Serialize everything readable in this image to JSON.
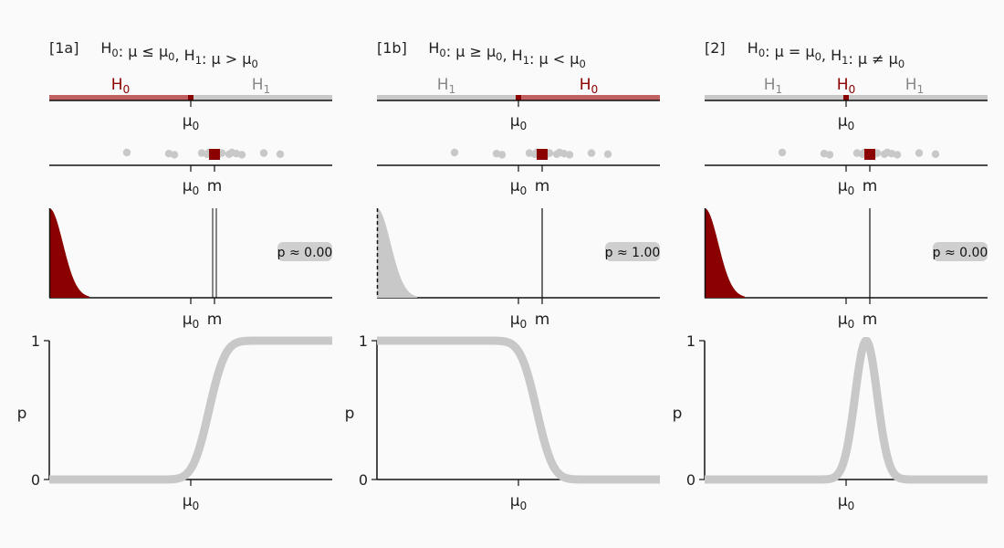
{
  "colors": {
    "h0": "#8b0000",
    "h0_bar": "#c06060",
    "h1_text": "#888888",
    "grey": "#c8c8c8",
    "marker": "#8b0000",
    "axis": "#111111",
    "badge_bg": "#cfcfcf"
  },
  "labels": {
    "mu0": "μ0",
    "m": "m",
    "p_axis": "p",
    "p_one": "1",
    "p_zero": "0",
    "h0": "H0",
    "h0_alt": "H0",
    "h1": "H1"
  },
  "panels": [
    {
      "tag": "[1a]",
      "hypothesis_text": "H0: μ ≤ μ0,  H1: μ > μ0",
      "test": "right",
      "h0_side": "left",
      "h0_label_key": "h0",
      "p_text": "p ≈ 0.00",
      "tail_color_key": "h0",
      "m_line_style": "double"
    },
    {
      "tag": "[1b]",
      "hypothesis_text": "H0: μ ≥ μ0,  H1: μ < μ0",
      "test": "left",
      "h0_side": "right",
      "h0_label_key": "h0_alt",
      "p_text": "p ≈ 1.00",
      "tail_color_key": "grey",
      "m_line_style": "single"
    },
    {
      "tag": "[2]",
      "hypothesis_text": "H0: μ = μ0,  H1: μ ≠ μ0",
      "test": "two",
      "h0_side": "center",
      "h0_label_key": "h0",
      "p_text": "p ≈ 0.00",
      "tail_color_key": "h0",
      "m_line_style": "single"
    }
  ],
  "sample_dots": [
    -0.7,
    -0.24,
    -0.18,
    0.12,
    0.18,
    0.2,
    0.26,
    0.3,
    0.34,
    0.42,
    0.45,
    0.5,
    0.56,
    0.8,
    0.98
  ],
  "m_value": 0.26
}
